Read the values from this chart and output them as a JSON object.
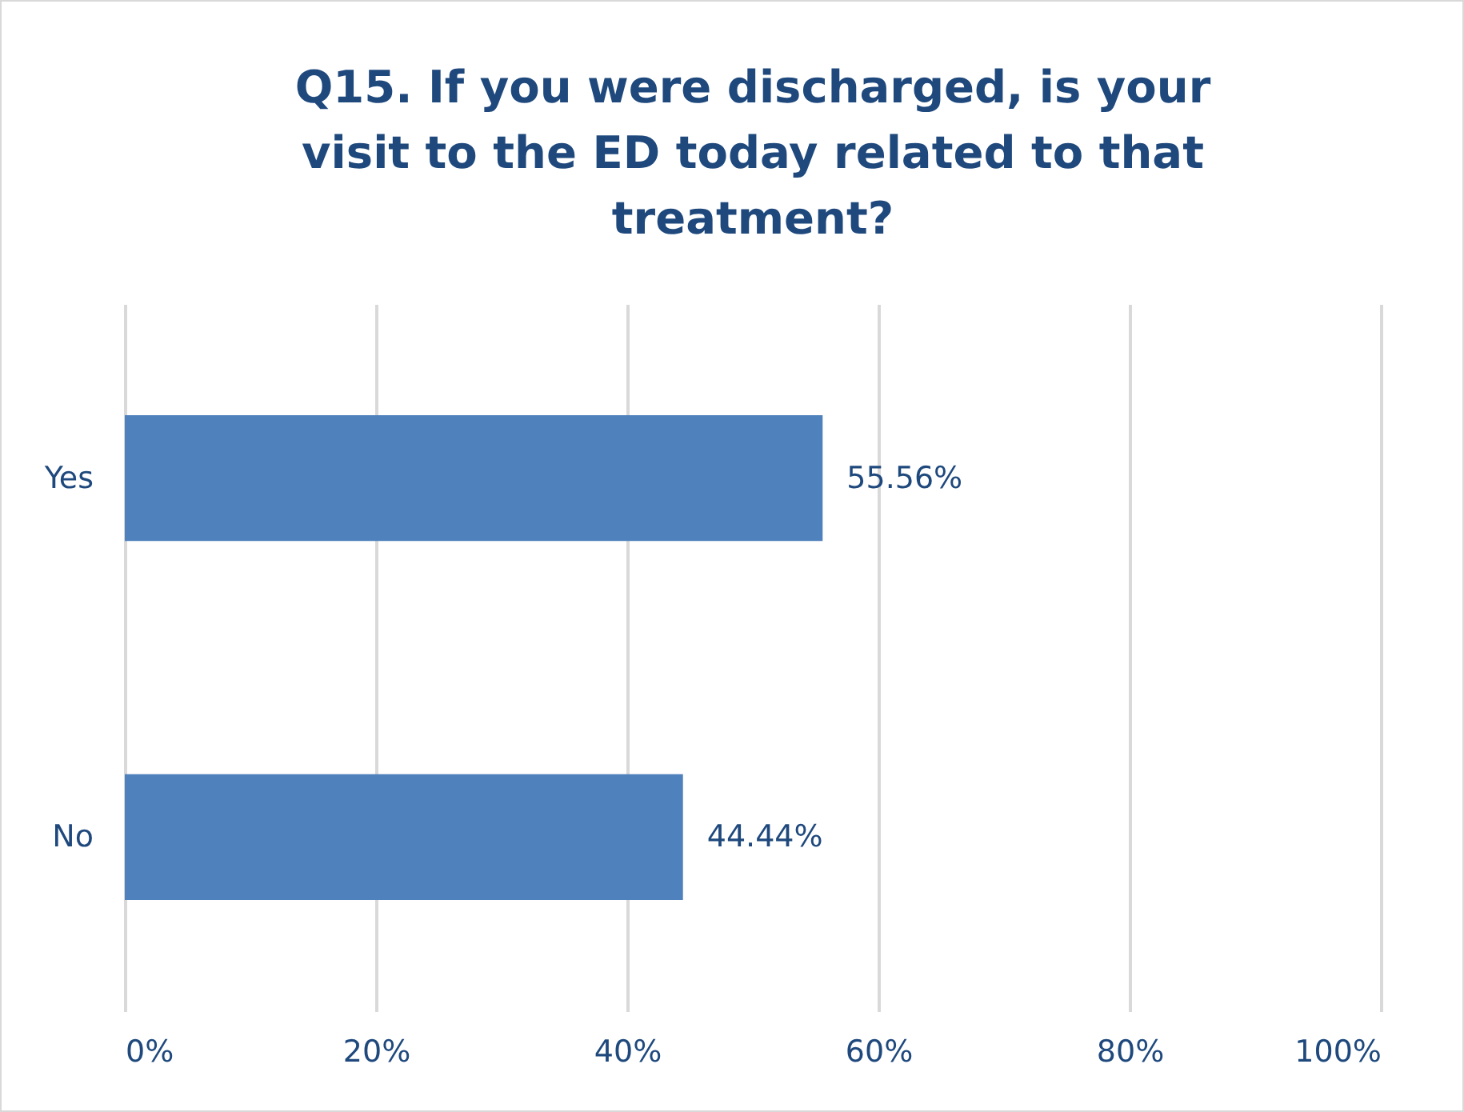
{
  "chart_data": {
    "type": "bar",
    "orientation": "horizontal",
    "title": "Q15. If you were discharged, is your visit to the ED today related to that treatment?",
    "categories": [
      "Yes",
      "No"
    ],
    "values": [
      55.56,
      44.44
    ],
    "value_labels": [
      "55.56%",
      "44.44%"
    ],
    "color": "#4f81bd",
    "xlim": [
      0,
      100
    ],
    "xticks": [
      {
        "value": 0,
        "label": "0%"
      },
      {
        "value": 20,
        "label": "20%"
      },
      {
        "value": 40,
        "label": "40%"
      },
      {
        "value": 60,
        "label": "60%"
      },
      {
        "value": 80,
        "label": "80%"
      },
      {
        "value": 100,
        "label": "100%"
      }
    ],
    "grid": "x"
  }
}
